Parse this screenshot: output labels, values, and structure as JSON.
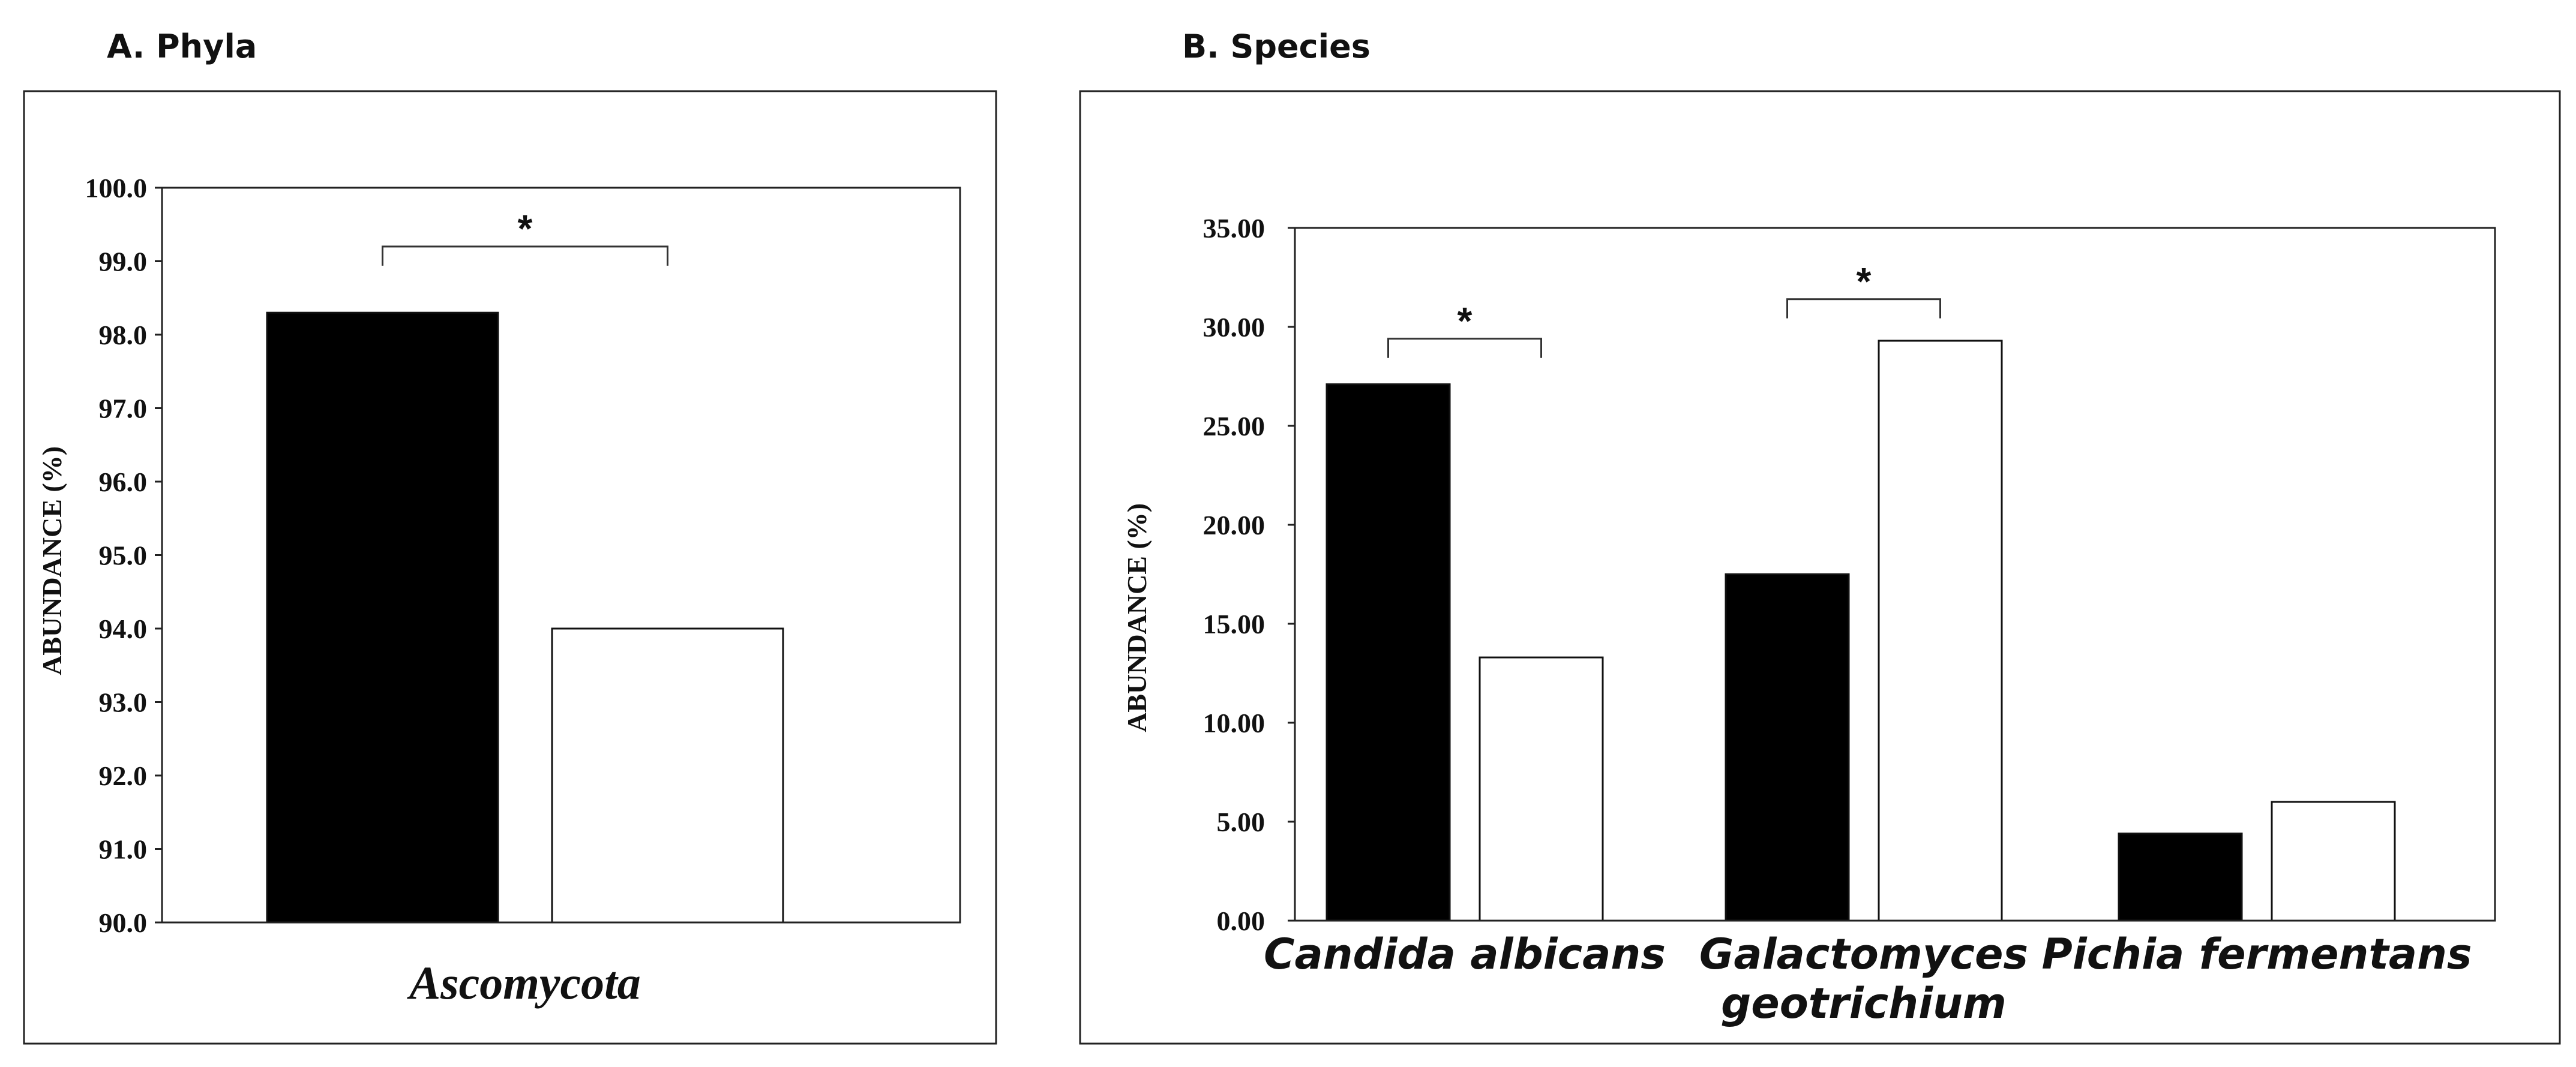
{
  "chart_data": [
    {
      "type": "bar",
      "panel_label": "A. Phyla",
      "title": "",
      "categories": [
        "Ascomycota"
      ],
      "series": [
        {
          "name": "",
          "color": "#000000",
          "values": [
            98.3
          ]
        },
        {
          "name": "",
          "color": "#ffffff",
          "values": [
            94.0
          ]
        }
      ],
      "xlabel": "",
      "ylabel": "ABUNDANCE (%)",
      "ylim": [
        90.0,
        100.0
      ],
      "yticks": [
        "90.0",
        "91.0",
        "92.0",
        "93.0",
        "94.0",
        "95.0",
        "96.0",
        "97.0",
        "98.0",
        "99.0",
        "100.0"
      ],
      "ytick_values": [
        90,
        91,
        92,
        93,
        94,
        95,
        96,
        97,
        98,
        99,
        100
      ],
      "significance": [
        {
          "category": 0,
          "label": "*",
          "bracket_level": 99.2
        }
      ],
      "grid": false,
      "legend": "none"
    },
    {
      "type": "bar",
      "panel_label": "B. Species",
      "title": "",
      "categories": [
        "Candida albicans",
        "Galactomyces geotrichium",
        "Pichia fermentans"
      ],
      "category_lines": [
        [
          "Candida albicans"
        ],
        [
          "Galactomyces",
          "geotrichium"
        ],
        [
          "Pichia fermentans"
        ]
      ],
      "series": [
        {
          "name": "",
          "color": "#000000",
          "values": [
            27.1,
            17.5,
            4.4
          ]
        },
        {
          "name": "",
          "color": "#ffffff",
          "values": [
            13.3,
            29.3,
            6.0
          ]
        }
      ],
      "xlabel": "",
      "ylabel": "ABUNDANCE (%)",
      "ylim": [
        0.0,
        35.0
      ],
      "yticks": [
        "0.00",
        "5.00",
        "10.00",
        "15.00",
        "20.00",
        "25.00",
        "30.00",
        "35.00"
      ],
      "ytick_values": [
        0,
        5,
        10,
        15,
        20,
        25,
        30,
        35
      ],
      "significance": [
        {
          "category": 0,
          "label": "*",
          "bracket_level": 29.4
        },
        {
          "category": 1,
          "label": "*",
          "bracket_level": 31.4
        }
      ],
      "grid": false,
      "legend": "none"
    }
  ]
}
